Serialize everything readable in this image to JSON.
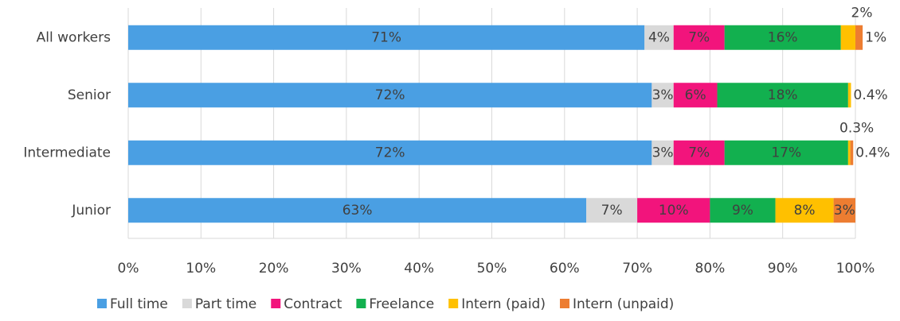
{
  "chart_data": {
    "type": "stacked_bar_horizontal",
    "categories": [
      "All workers",
      "Senior",
      "Intermediate",
      "Junior"
    ],
    "series": [
      {
        "name": "Full time",
        "color": "#4a9fe3",
        "values": [
          71,
          72,
          72,
          63
        ],
        "value_labels": [
          "71%",
          "72%",
          "72%",
          "63%"
        ]
      },
      {
        "name": "Part time",
        "color": "#d9d9d9",
        "values": [
          4,
          3,
          3,
          7
        ],
        "value_labels": [
          "4%",
          "3%",
          "3%",
          "7%"
        ]
      },
      {
        "name": "Contract",
        "color": "#f2147c",
        "values": [
          7,
          6,
          7,
          10
        ],
        "value_labels": [
          "7%",
          "6%",
          "7%",
          "10%"
        ]
      },
      {
        "name": "Freelance",
        "color": "#12b04f",
        "values": [
          16,
          18,
          17,
          9
        ],
        "value_labels": [
          "16%",
          "18%",
          "17%",
          "9%"
        ]
      },
      {
        "name": "Intern (paid)",
        "color": "#ffc000",
        "values": [
          2,
          0.4,
          0.3,
          8
        ],
        "value_labels": [
          "2%",
          "0.4%",
          "0.3%",
          "8%"
        ]
      },
      {
        "name": "Intern (unpaid)",
        "color": "#ed7d31",
        "values": [
          1,
          null,
          0.4,
          3
        ],
        "value_labels": [
          "1%",
          null,
          "0.4%",
          "3%"
        ]
      }
    ],
    "xlim": [
      0,
      100
    ],
    "xticks": [
      {
        "value": 0,
        "label": "0%"
      },
      {
        "value": 10,
        "label": "10%"
      },
      {
        "value": 20,
        "label": "20%"
      },
      {
        "value": 30,
        "label": "30%"
      },
      {
        "value": 40,
        "label": "40%"
      },
      {
        "value": 50,
        "label": "50%"
      },
      {
        "value": 60,
        "label": "60%"
      },
      {
        "value": 70,
        "label": "70%"
      },
      {
        "value": 80,
        "label": "80%"
      },
      {
        "value": 90,
        "label": "90%"
      },
      {
        "value": 100,
        "label": "100%"
      }
    ],
    "grid": true,
    "legend": "bottom"
  }
}
